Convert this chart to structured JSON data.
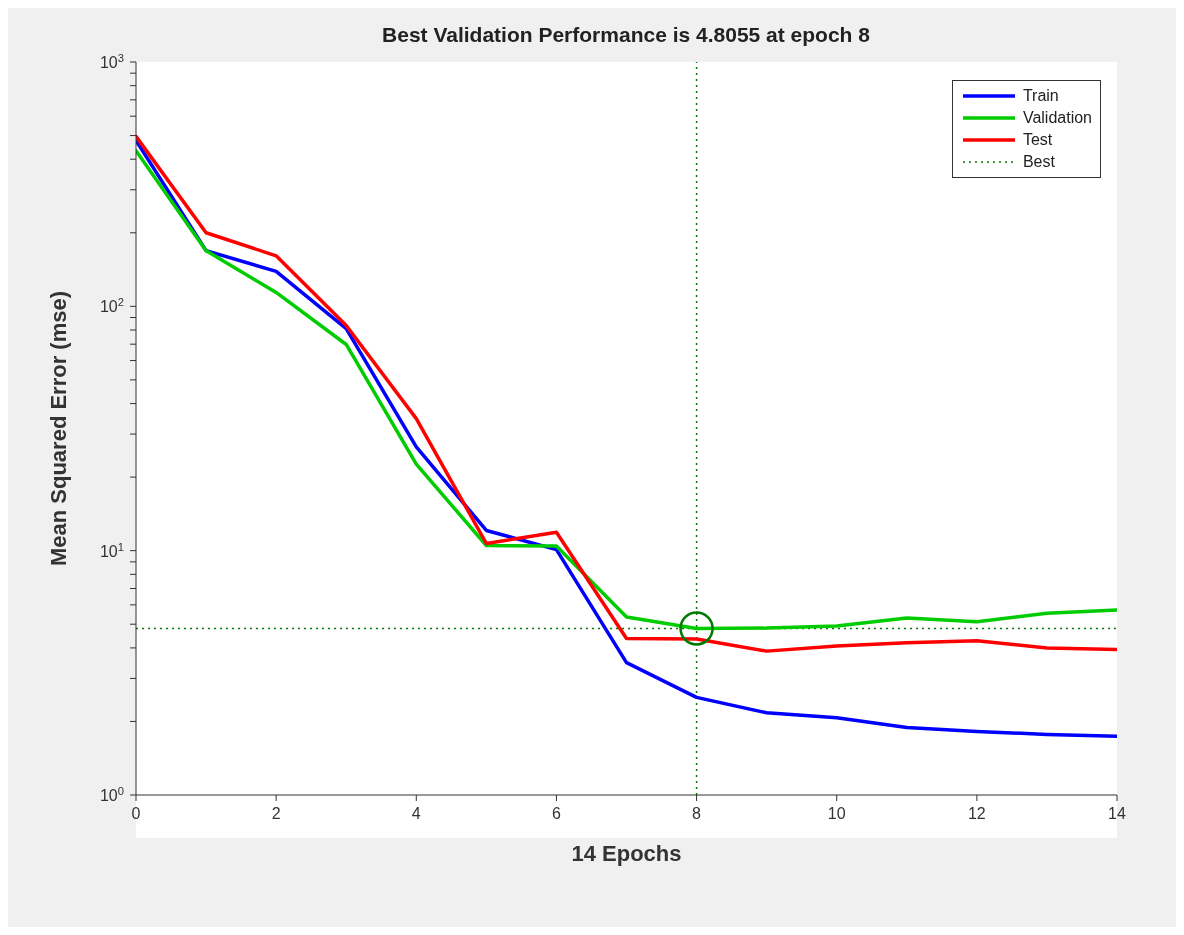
{
  "chart_data": {
    "type": "line",
    "title": "Best Validation Performance is 4.8055 at epoch 8",
    "xlabel": "14 Epochs",
    "ylabel": "Mean Squared Error  (mse)",
    "x": [
      0,
      1,
      2,
      3,
      4,
      5,
      6,
      7,
      8,
      9,
      10,
      11,
      12,
      13,
      14
    ],
    "series": [
      {
        "name": "Train",
        "color": "#0000ff",
        "values": [
          477,
          169,
          139,
          81,
          26.6,
          12.1,
          10.1,
          3.48,
          2.51,
          2.17,
          2.07,
          1.89,
          1.82,
          1.77,
          1.74
        ]
      },
      {
        "name": "Validation",
        "color": "#00cc00",
        "values": [
          433,
          169,
          114,
          69.8,
          22.6,
          10.5,
          10.45,
          5.35,
          4.8055,
          4.82,
          4.92,
          5.3,
          5.12,
          5.55,
          5.72
        ]
      },
      {
        "name": "Test",
        "color": "#ff0000",
        "values": [
          496,
          200,
          161,
          83.5,
          34.7,
          10.7,
          11.9,
          4.37,
          4.35,
          3.88,
          4.07,
          4.2,
          4.28,
          4.0,
          3.94
        ]
      },
      {
        "name": "Best",
        "type": "scatter",
        "color": "#007a00",
        "x": [
          8
        ],
        "values": [
          4.8055
        ],
        "marker": "circle",
        "line_style": "dotted"
      }
    ],
    "ref_lines": [
      {
        "axis": "x",
        "value": 8,
        "color": "#007a00",
        "line_style": "dotted"
      },
      {
        "axis": "y",
        "value": 4.8055,
        "color": "#007a00",
        "line_style": "dotted"
      }
    ],
    "log": "y",
    "grid": false,
    "legend": "top right",
    "marker": "none",
    "line_style": "solid",
    "xlim": [
      0,
      14
    ],
    "xticks": [
      0,
      2,
      4,
      6,
      8,
      10,
      12,
      14
    ],
    "ylim": [
      1,
      1000
    ],
    "yticks": [
      {
        "value": 1,
        "label": "10$^{0}$"
      },
      {
        "value": 2,
        "label": null
      },
      {
        "value": 3,
        "label": null
      },
      {
        "value": 4,
        "label": null
      },
      {
        "value": 5,
        "label": null
      },
      {
        "value": 6,
        "label": null
      },
      {
        "value": 7,
        "label": null
      },
      {
        "value": 8,
        "label": null
      },
      {
        "value": 9,
        "label": null
      },
      {
        "value": 10,
        "label": "10$^{1}$"
      },
      {
        "value": 20,
        "label": null
      },
      {
        "value": 30,
        "label": null
      },
      {
        "value": 40,
        "label": null
      },
      {
        "value": 50,
        "label": null
      },
      {
        "value": 60,
        "label": null
      },
      {
        "value": 70,
        "label": null
      },
      {
        "value": 80,
        "label": null
      },
      {
        "value": 90,
        "label": null
      },
      {
        "value": 100,
        "label": "10$^{2}$"
      },
      {
        "value": 200,
        "label": null
      },
      {
        "value": 300,
        "label": null
      },
      {
        "value": 400,
        "label": null
      },
      {
        "value": 500,
        "label": null
      },
      {
        "value": 600,
        "label": null
      },
      {
        "value": 700,
        "label": null
      },
      {
        "value": 800,
        "label": null
      },
      {
        "value": 900,
        "label": null
      },
      {
        "value": 1000,
        "label": "10$^{3}$"
      }
    ]
  }
}
